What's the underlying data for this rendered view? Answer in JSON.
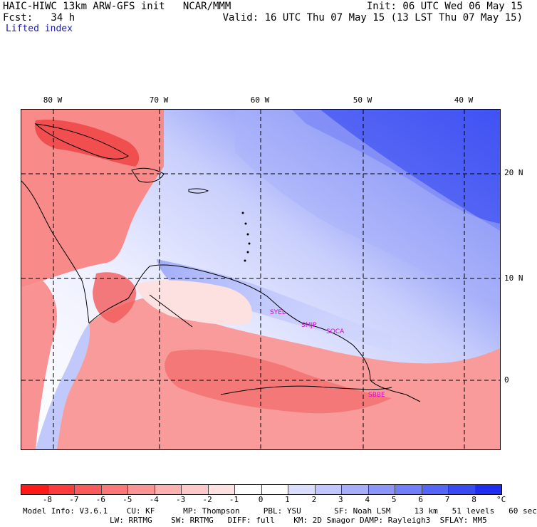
{
  "header": {
    "left_line1": "HAIC-HIWC 13km ARW-GFS init   NCAR/MMM",
    "left_line2": "Fcst:   34 h",
    "right_line1": "Init: 06 UTC Wed 06 May 15",
    "right_line2": "Valid: 16 UTC Thu 07 May 15 (13 LST Thu 07 May 15)",
    "field_name": "Lifted index"
  },
  "map": {
    "longitude_labels": [
      "80 W",
      "70 W",
      "60 W",
      "50 W",
      "40 W"
    ],
    "latitude_labels": [
      "20 N",
      "10 N",
      "0"
    ],
    "stations": [
      "SYEL",
      "SMJP",
      "SOCA",
      "SBBE"
    ],
    "colors": {
      "strong_negative": "#f23a3a",
      "negative": "#fb9a9a",
      "near_zero": "#f4f4ff",
      "positive": "#b8c0fb",
      "strong_positive": "#3f52f3",
      "land_outline": "#000000",
      "station_label": "#e000e0"
    }
  },
  "colorbar": {
    "labels": [
      "-8",
      "-7",
      "-6",
      "-5",
      "-4",
      "-3",
      "-2",
      "-1",
      "0",
      "1",
      "2",
      "3",
      "4",
      "5",
      "6",
      "7",
      "8"
    ],
    "unit": "°C",
    "colors": [
      "#ff1a1a",
      "#ff3a3a",
      "#fb5a5a",
      "#fb7777",
      "#fb9494",
      "#fcb0b0",
      "#fdc8c8",
      "#fee0e0",
      "#ffffff",
      "#ffffff",
      "#dcdcff",
      "#c2c6fe",
      "#a6aefb",
      "#8c96fa",
      "#7280f8",
      "#5565f5",
      "#3a4af3",
      "#1d2ef0"
    ]
  },
  "model_info": {
    "line1": "Model Info: V3.6.1    CU: KF      MP: Thompson     PBL: YSU       SF: Noah LSM     13 km   51 levels   60 sec",
    "line2": "LW: RRTMG    SW: RRTMG   DIFF: full    KM: 2D Smagor DAMP: Rayleigh3  SFLAY: MM5"
  }
}
